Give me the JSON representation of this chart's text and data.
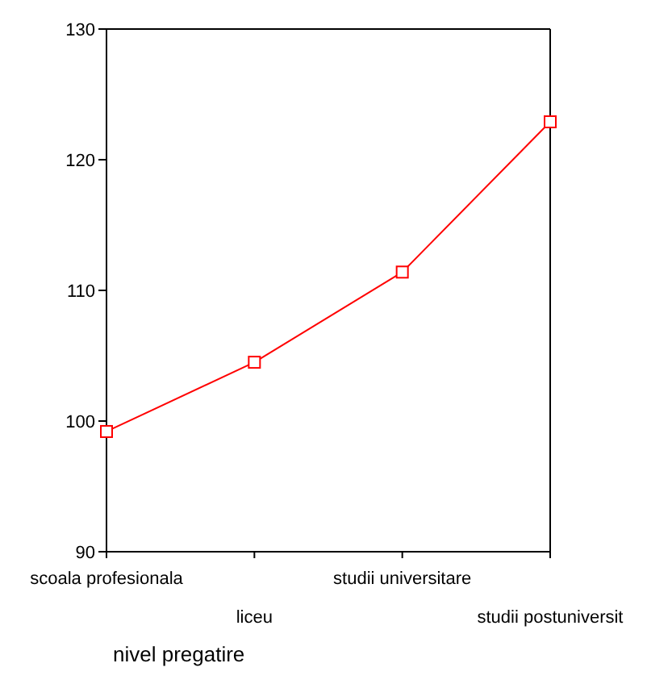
{
  "chart_data": {
    "type": "line",
    "xlabel": "nivel pregatire",
    "categories": [
      "scoala profesionala",
      "liceu",
      "studii universitare",
      "studii postuniversit"
    ],
    "series": [
      {
        "color": "#ff0000",
        "values": [
          99.2,
          104.5,
          111.4,
          122.9
        ]
      }
    ],
    "ylim": [
      90,
      130
    ],
    "yticks": [
      90,
      100,
      110,
      120,
      130
    ],
    "grid": false,
    "legend": false,
    "marker": "square",
    "line_style": "solid"
  }
}
